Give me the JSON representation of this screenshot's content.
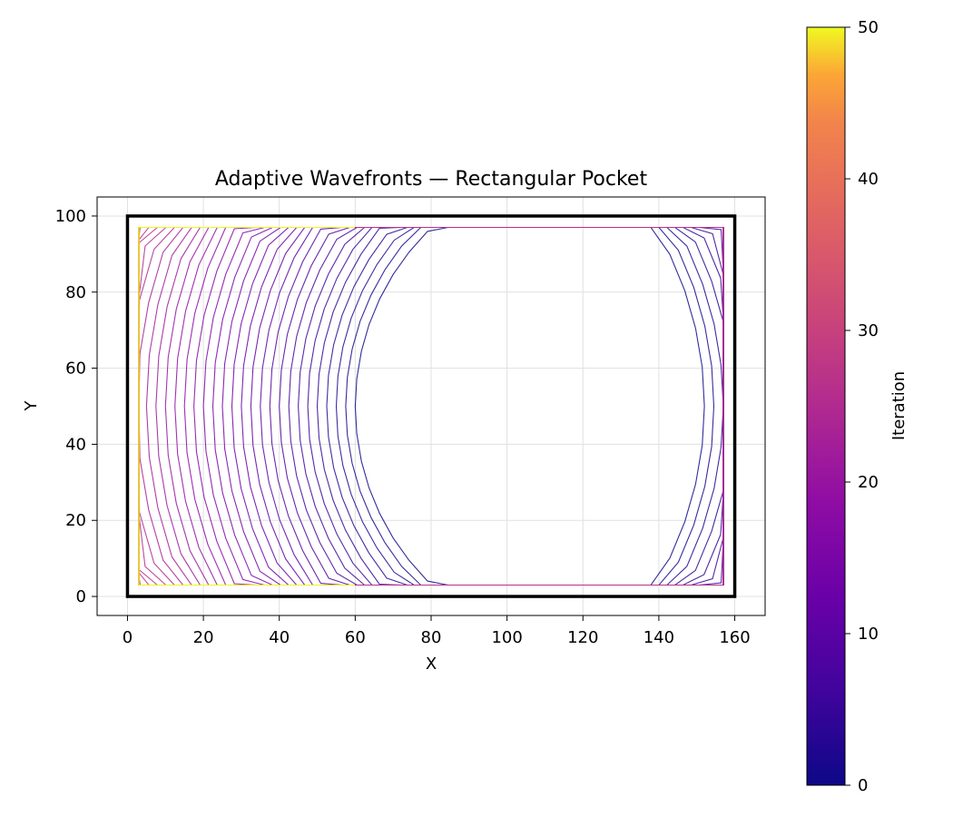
{
  "chart_data": {
    "type": "line",
    "title": "Adaptive Wavefronts — Rectangular Pocket",
    "xlabel": "X",
    "ylabel": "Y",
    "xlim": [
      -8,
      168
    ],
    "ylim": [
      -5,
      105
    ],
    "xticks": [
      0,
      20,
      40,
      60,
      80,
      100,
      120,
      140,
      160
    ],
    "yticks": [
      0,
      20,
      40,
      60,
      80,
      100
    ],
    "grid": true,
    "aspect": "equal",
    "boundary": {
      "shape": "rectangle",
      "x": [
        0,
        160
      ],
      "y": [
        0,
        100
      ],
      "color": "#000000"
    },
    "wavefronts": {
      "left_group": {
        "center": [
          125,
          50
        ],
        "initial_radius": 65,
        "radius_step": 2.5,
        "clip_x": [
          3,
          155
        ],
        "clip_y": [
          3,
          97
        ]
      },
      "right_group": {
        "center": [
          60,
          50
        ],
        "initial_radius": 92,
        "radius_step": 2.5,
        "clip_x": [
          3,
          157
        ],
        "clip_y": [
          3,
          97
        ]
      },
      "left_iterations": [
        0,
        50
      ],
      "right_iterations": [
        0,
        27
      ]
    },
    "colorbar": {
      "label": "Iteration",
      "colormap": "plasma",
      "range": [
        0,
        50
      ],
      "ticks": [
        0,
        10,
        20,
        30,
        40,
        50
      ]
    }
  }
}
